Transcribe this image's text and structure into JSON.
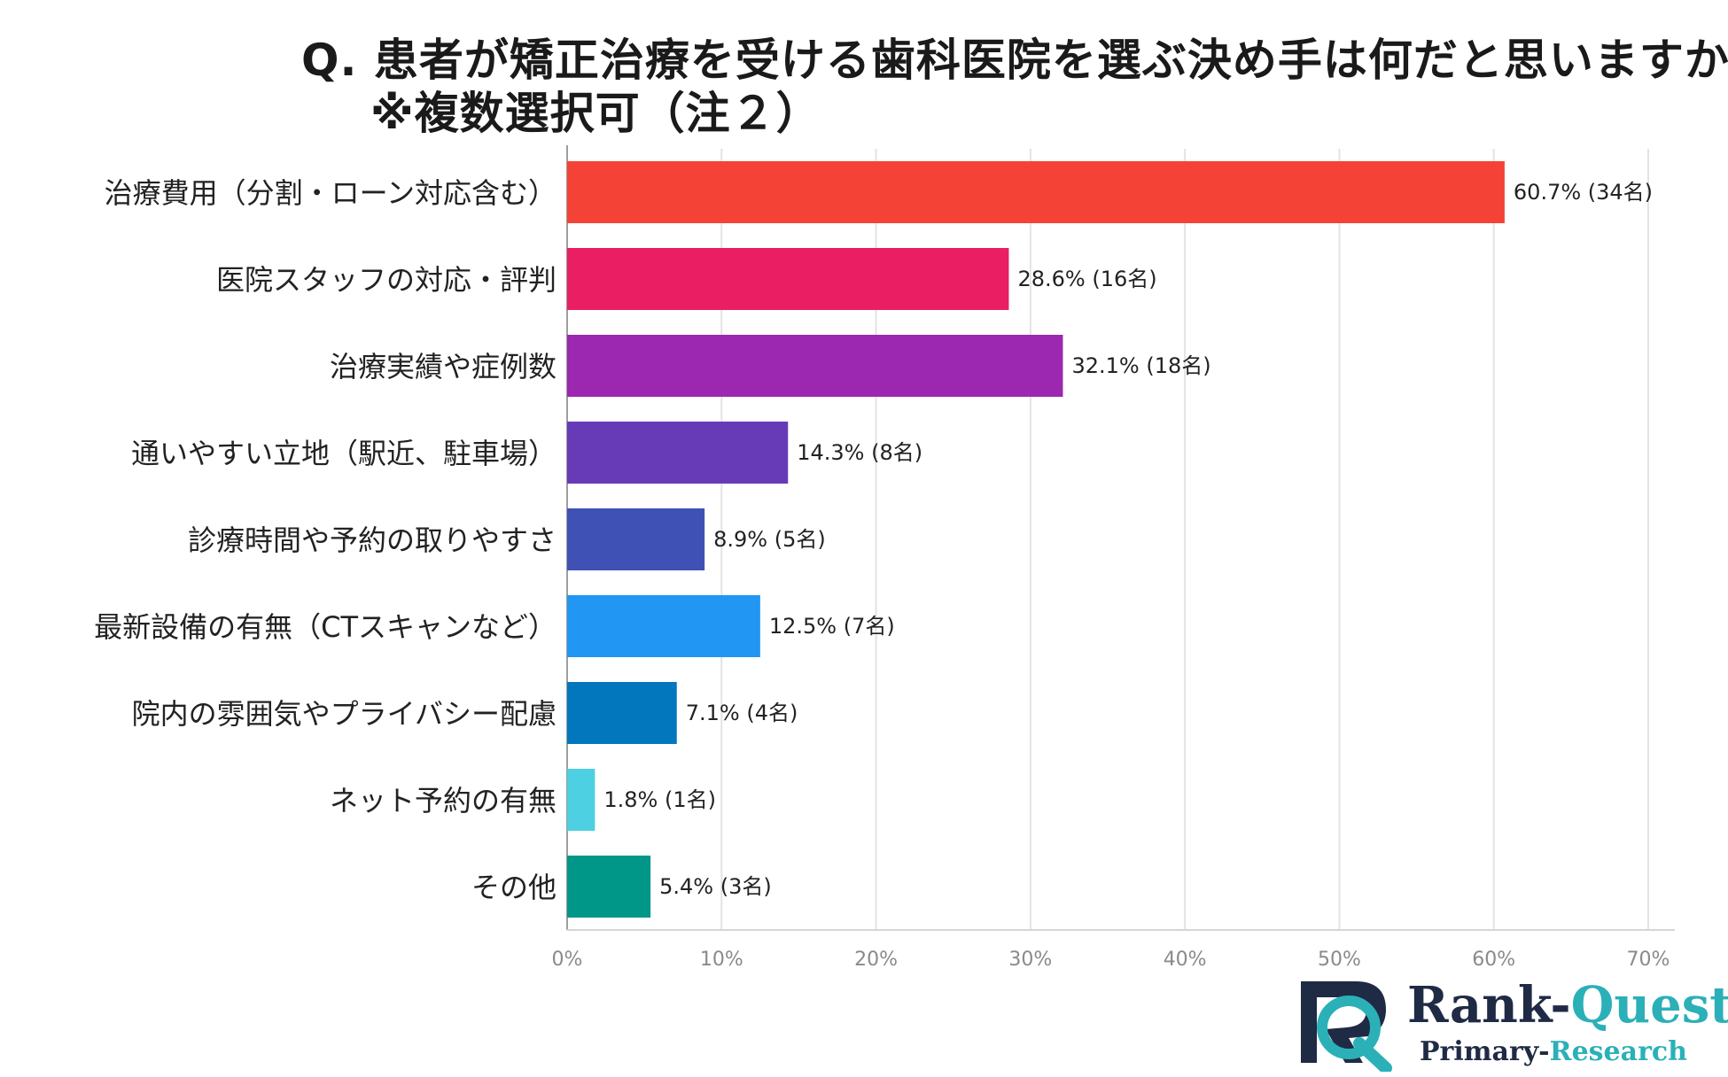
{
  "chart_data": {
    "type": "bar",
    "orientation": "horizontal",
    "title": "Q. 患者が矯正治療を受ける歯科医院を選ぶ決め手は何だと思いますか？",
    "subtitle": "※複数選択可（注２）",
    "categories": [
      "治療費用（分割・ローン対応含む）",
      "医院スタッフの対応・評判",
      "治療実績や症例数",
      "通いやすい立地（駅近、駐車場）",
      "診療時間や予約の取りやすさ",
      "最新設備の有無（CTスキャンなど）",
      "院内の雰囲気やプライバシー配慮",
      "ネット予約の有無",
      "その他"
    ],
    "values": [
      60.7,
      28.6,
      32.1,
      14.3,
      8.9,
      12.5,
      7.1,
      1.8,
      5.4
    ],
    "data_labels": [
      "60.7% (34名)",
      "28.6% (16名)",
      "32.1% (18名)",
      "14.3% (8名)",
      "8.9% (5名)",
      "12.5% (7名)",
      "7.1% (4名)",
      "1.8% (1名)",
      "5.4% (3名)"
    ],
    "colors": [
      "#f44336",
      "#e91e63",
      "#9c27b0",
      "#673ab7",
      "#3f51b5",
      "#2196f3",
      "#0277bd",
      "#4dd0e1",
      "#009688"
    ],
    "xlim": [
      0,
      70
    ],
    "x_ticks": [
      0,
      10,
      20,
      30,
      40,
      50,
      60,
      70
    ],
    "x_tick_labels": [
      "0%",
      "10%",
      "20%",
      "30%",
      "40%",
      "50%",
      "60%",
      "70%"
    ],
    "xlabel": "",
    "ylabel": "",
    "grid": true
  },
  "logo": {
    "name_part1": "Rank-",
    "name_part2": "Quest",
    "sub_part1": "Primary-",
    "sub_part2": "Research",
    "colors": {
      "dark": "#1f2a44",
      "teal": "#2bb0b8"
    }
  }
}
